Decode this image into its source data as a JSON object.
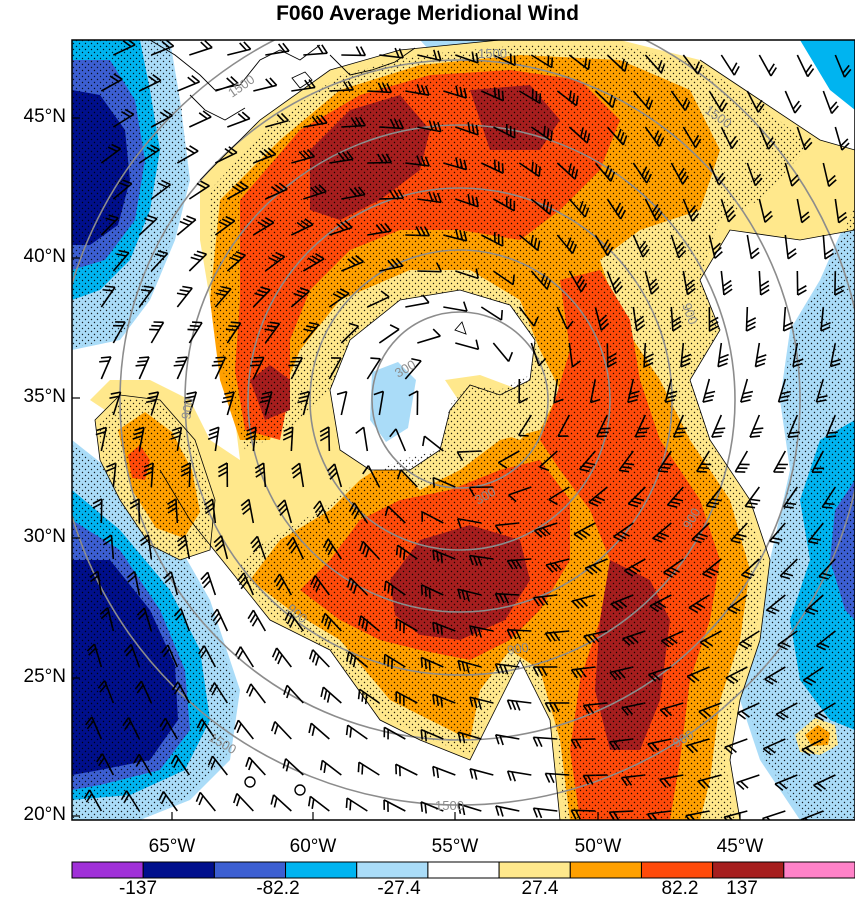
{
  "title": "F060 Average Meridional Wind",
  "lat_labels": [
    "45°N",
    "40°N",
    "35°N",
    "30°N",
    "25°N",
    "20°N"
  ],
  "lon_labels": [
    "65°W",
    "60°W",
    "55°W",
    "50°W",
    "45°W"
  ],
  "colorbar": {
    "labels": [
      "-137",
      "-82.2",
      "-27.4",
      "27.4",
      "82.2",
      "137"
    ],
    "colors": [
      "#a030d8",
      "#000f8c",
      "#3c5fd2",
      "#00b4f0",
      "#aadcf8",
      "#ffffff",
      "#ffe88c",
      "#ffa000",
      "#ff4a0a",
      "#a61e1e",
      "#ff82c8"
    ]
  },
  "contour_labels": [
    "1500",
    "1500",
    "1500",
    "900",
    "300",
    "300",
    "900",
    "900",
    "900",
    "1500",
    "1500",
    "900",
    "900"
  ],
  "colors": {
    "white": "#ffffff",
    "lightyellow": "#ffe88c",
    "orange": "#ffa000",
    "redorange": "#ff4a0a",
    "darkred": "#a61e1e",
    "lightblue": "#aadcf8",
    "cyan": "#00b4f0",
    "blue": "#3c5fd2",
    "navy": "#000f8c",
    "contour": "#8c8c8c"
  }
}
